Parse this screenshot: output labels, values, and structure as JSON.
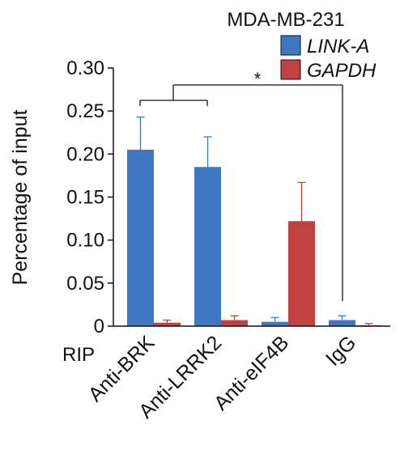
{
  "chart_data": {
    "type": "bar",
    "title": "MDA-MB-231",
    "ylabel": "Percentage of input",
    "xlabel": "",
    "row_label": "RIP",
    "categories": [
      "Anti-BRK",
      "Anti-LRRK2",
      "Anti-eIF4B",
      "IgG"
    ],
    "series": [
      {
        "name": "LINK-A",
        "color": "#3f77c0",
        "values": [
          0.205,
          0.185,
          0.005,
          0.007
        ],
        "errors": [
          0.038,
          0.035,
          0.005,
          0.005
        ]
      },
      {
        "name": "GAPDH",
        "color": "#c0413f",
        "values": [
          0.004,
          0.007,
          0.122,
          0.001
        ],
        "errors": [
          0.003,
          0.005,
          0.045,
          0.002
        ]
      }
    ],
    "ylim": [
      0,
      0.3
    ],
    "yticks": [
      0,
      0.05,
      0.1,
      0.15,
      0.2,
      0.25,
      0.3
    ],
    "ytick_labels": [
      "0",
      "0.05",
      "0.10",
      "0.15",
      "0.20",
      "0.25",
      "0.30"
    ],
    "grid": false,
    "legend": "top-right",
    "annotations": [
      {
        "text": "*",
        "type": "significance-bracket"
      }
    ]
  }
}
